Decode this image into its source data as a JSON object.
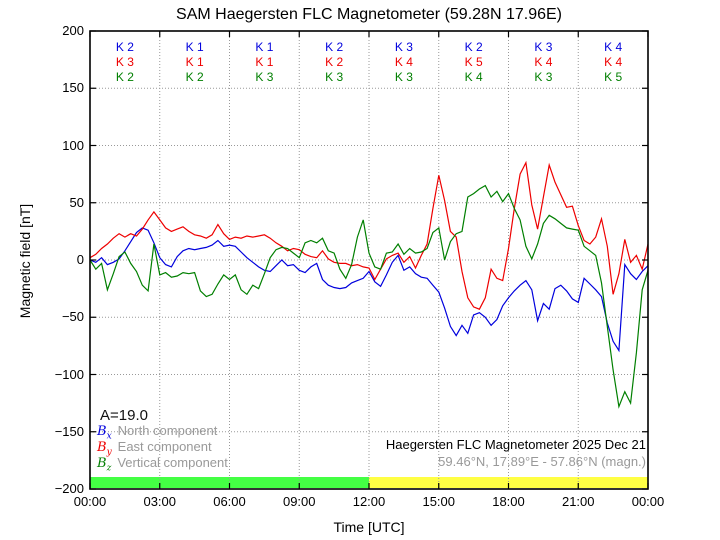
{
  "title": "SAM Haegersten FLC Magnetometer (59.28N 17.96E)",
  "colors": {
    "blue": "#0000dd",
    "red": "#ee0000",
    "green": "#007f00"
  },
  "a_index": "A=19.0",
  "legend": [
    {
      "symbol": "B",
      "sub": "x",
      "label": "North component",
      "color_key": "blue"
    },
    {
      "symbol": "B",
      "sub": "y",
      "label": "East component",
      "color_key": "red"
    },
    {
      "symbol": "B",
      "sub": "z",
      "label": "Vertical component",
      "color_key": "green"
    }
  ],
  "annotation": {
    "line1": "Haegersten FLC Magnetometer 2025 Dec 21",
    "line2": "59.46°N, 17.89°E - 57.86°N (magn.)"
  },
  "chart_data": {
    "type": "line",
    "title": "SAM Haegersten FLC Magnetometer (59.28N 17.96E)",
    "xlabel": "Time [UTC]",
    "ylabel": "Magnetic field [nT]",
    "xlim_hours": [
      0,
      24
    ],
    "ylim": [
      -200,
      200
    ],
    "grid": "dotted",
    "x_tick_hours": [
      0,
      3,
      6,
      9,
      12,
      15,
      18,
      21,
      24
    ],
    "x_tick_labels": [
      "00:00",
      "03:00",
      "06:00",
      "09:00",
      "12:00",
      "15:00",
      "18:00",
      "21:00",
      "00:00"
    ],
    "y_ticks": [
      200,
      150,
      100,
      50,
      0,
      -50,
      -100,
      -150,
      -200
    ],
    "y_tick_labels": [
      "200",
      "150",
      "100",
      "50",
      "0",
      "−50",
      "−100",
      "−150",
      "−200"
    ],
    "t_step_hours": 0.25,
    "series": [
      {
        "name": "Bx North component",
        "color_key": "blue",
        "values": [
          0,
          -2,
          2,
          -4,
          -2,
          1,
          8,
          16,
          24,
          28,
          26,
          15,
          2,
          -4,
          -6,
          3,
          8,
          10,
          9,
          10,
          11,
          13,
          17,
          12,
          13,
          12,
          7,
          2,
          -2,
          -6,
          -9,
          -10,
          -5,
          0,
          -5,
          -4,
          -9,
          -11,
          -6,
          -3,
          -17,
          -22,
          -24,
          -25,
          -24,
          -20,
          -18,
          -16,
          -10,
          -19,
          -23,
          -13,
          -2,
          4,
          -9,
          -6,
          -12,
          -15,
          -16,
          -22,
          -28,
          -42,
          -58,
          -66,
          -57,
          -64,
          -48,
          -46,
          -50,
          -57,
          -52,
          -40,
          -33,
          -27,
          -22,
          -18,
          -26,
          -53,
          -38,
          -43,
          -25,
          -22,
          -27,
          -34,
          -37,
          -16,
          -21,
          -26,
          -32,
          -55,
          -71,
          -79,
          -4,
          -12,
          -17,
          -10,
          -5
        ]
      },
      {
        "name": "By East component",
        "color_key": "red",
        "values": [
          2,
          5,
          10,
          14,
          19,
          23,
          20,
          23,
          21,
          27,
          35,
          42,
          35,
          28,
          25,
          27,
          29,
          25,
          22,
          21,
          19,
          22,
          31,
          23,
          18,
          20,
          19,
          21,
          20,
          21,
          22,
          19,
          15,
          12,
          8,
          10,
          9,
          5,
          3,
          2,
          8,
          1,
          -2,
          -3,
          -3,
          -5,
          -4,
          -6,
          -7,
          -17,
          -8,
          1,
          4,
          6,
          -2,
          3,
          -7,
          4,
          14,
          45,
          74,
          52,
          25,
          20,
          -10,
          -33,
          -41,
          -43,
          -33,
          -8,
          -16,
          -18,
          10,
          45,
          75,
          85,
          48,
          27,
          55,
          83,
          68,
          57,
          46,
          47,
          30,
          17,
          14,
          20,
          36,
          12,
          -30,
          -12,
          18,
          -2,
          4,
          -8,
          14
        ]
      },
      {
        "name": "Bz Vertical component",
        "color_key": "green",
        "values": [
          0,
          -8,
          -3,
          -26,
          -12,
          3,
          7,
          -3,
          -10,
          -22,
          -27,
          14,
          -13,
          -11,
          -15,
          -14,
          -11,
          -12,
          -11,
          -27,
          -32,
          -30,
          -21,
          -13,
          -17,
          -13,
          -26,
          -30,
          -22,
          -25,
          -12,
          2,
          9,
          11,
          10,
          6,
          2,
          15,
          17,
          15,
          19,
          8,
          6,
          -8,
          -16,
          -4,
          20,
          35,
          6,
          -6,
          -8,
          6,
          7,
          14,
          5,
          10,
          6,
          7,
          10,
          24,
          28,
          0,
          16,
          23,
          25,
          55,
          58,
          62,
          65,
          55,
          60,
          51,
          58,
          45,
          35,
          12,
          1,
          14,
          32,
          39,
          36,
          32,
          28,
          27,
          26,
          12,
          8,
          4,
          -20,
          -58,
          -96,
          -128,
          -115,
          -125,
          -81,
          -26,
          -9
        ]
      }
    ],
    "k_index": {
      "interval_hours": 3,
      "prefix": "K",
      "rows": [
        {
          "color_key": "blue",
          "values": [
            2,
            1,
            1,
            2,
            3,
            2,
            3,
            4
          ]
        },
        {
          "color_key": "red",
          "values": [
            3,
            1,
            1,
            2,
            4,
            5,
            4,
            4
          ]
        },
        {
          "color_key": "green",
          "values": [
            2,
            2,
            3,
            3,
            3,
            4,
            3,
            5
          ]
        }
      ]
    },
    "activity_bar": {
      "segments": [
        {
          "start_hour": 0,
          "end_hour": 12,
          "color": "#44ff44"
        },
        {
          "start_hour": 12,
          "end_hour": 24,
          "color": "#ffff44"
        }
      ]
    }
  }
}
